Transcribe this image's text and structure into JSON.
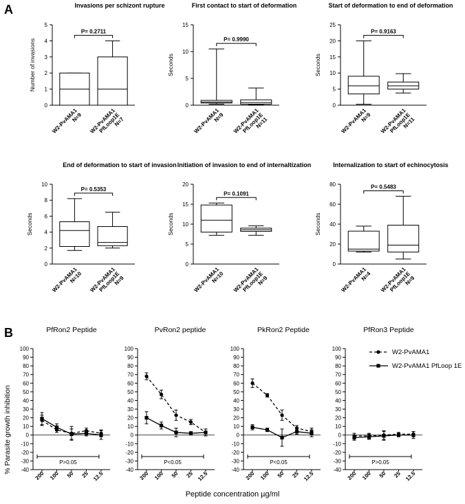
{
  "figure": {
    "panel_a_label": "A",
    "panel_b_label": "B"
  },
  "chart_data": [
    {
      "type": "box",
      "title": "Invasions per schizont rupture",
      "ylabel": "Number of invasions",
      "ylim": [
        0,
        5
      ],
      "yticks": [
        0,
        1,
        2,
        3,
        4,
        5
      ],
      "pvalue": "P= 0.2711",
      "groups": [
        {
          "label": [
            "W2-PvAMA1",
            "N=9"
          ],
          "min": 0,
          "q1": 0,
          "median": 1,
          "q3": 2,
          "max": 2
        },
        {
          "label": [
            "W2-PvAMA1",
            "PfLoop1E",
            "N=7"
          ],
          "min": 0,
          "q1": 0,
          "median": 1,
          "q3": 3,
          "max": 4
        }
      ]
    },
    {
      "type": "box",
      "title": "First contact to start of deformation",
      "ylabel": "Seconds",
      "ylim": [
        0,
        15
      ],
      "yticks": [
        0,
        5,
        10,
        15
      ],
      "pvalue": "P= 0.9990",
      "groups": [
        {
          "label": [
            "W2-PvAMA1",
            "N=9"
          ],
          "min": 0.2,
          "q1": 0.4,
          "median": 0.6,
          "q3": 0.9,
          "max": 10.5
        },
        {
          "label": [
            "W2-PvAMA1",
            "PfLoop1E",
            "N=11"
          ],
          "min": 0.1,
          "q1": 0.2,
          "median": 0.5,
          "q3": 1.0,
          "max": 3.2
        }
      ]
    },
    {
      "type": "box",
      "title": "Start of deformation to end of deformation",
      "ylabel": "Seconds",
      "ylim": [
        0,
        25
      ],
      "yticks": [
        0,
        5,
        10,
        15,
        20,
        25
      ],
      "pvalue": "P= 0.9163",
      "groups": [
        {
          "label": [
            "W2-PvAMA1",
            "N=9"
          ],
          "min": 0.3,
          "q1": 3.5,
          "median": 6.0,
          "q3": 9.0,
          "max": 20.0
        },
        {
          "label": [
            "W2-PvAMA1",
            "PfLoop1E",
            "N=11"
          ],
          "min": 3.8,
          "q1": 5.0,
          "median": 6.0,
          "q3": 7.2,
          "max": 9.8
        }
      ]
    },
    {
      "type": "box",
      "title": "End of deformation to start of invasion",
      "ylabel": "Seconds",
      "ylim": [
        0,
        10
      ],
      "yticks": [
        0,
        2,
        4,
        6,
        8,
        10
      ],
      "pvalue": "P= 0.5353",
      "groups": [
        {
          "label": [
            "W2-PvAMA1",
            "N=10"
          ],
          "min": 1.7,
          "q1": 2.2,
          "median": 4.2,
          "q3": 5.3,
          "max": 8.2
        },
        {
          "label": [
            "W2-PvAMA1",
            "PfLoop1E",
            "N=9"
          ],
          "min": 2.0,
          "q1": 2.3,
          "median": 2.7,
          "q3": 4.7,
          "max": 6.5
        }
      ]
    },
    {
      "type": "box",
      "title": "Initiation of invasion to end of internaltization",
      "ylabel": "Seconds",
      "ylim": [
        0,
        20
      ],
      "yticks": [
        0,
        5,
        10,
        15,
        20
      ],
      "pvalue": "P= 0.1091",
      "groups": [
        {
          "label": [
            "W2-PvAMA1",
            "N=10"
          ],
          "min": 7.2,
          "q1": 8.0,
          "median": 11.0,
          "q3": 14.8,
          "max": 15.3
        },
        {
          "label": [
            "W2-PvAMA1",
            "PfLoop1E",
            "N=9"
          ],
          "min": 7.2,
          "q1": 8.2,
          "median": 8.6,
          "q3": 9.0,
          "max": 9.6
        }
      ]
    },
    {
      "type": "box",
      "title": "Internalization to start of echinocytosis",
      "ylabel": "Seconds",
      "ylim": [
        0,
        80
      ],
      "yticks": [
        0,
        20,
        40,
        60,
        80
      ],
      "pvalue": "P= 0.5483",
      "groups": [
        {
          "label": [
            "W2-PvAMA1",
            "N=4"
          ],
          "min": 12,
          "q1": 13,
          "median": 15,
          "q3": 33,
          "max": 38
        },
        {
          "label": [
            "W2-PvAMA1",
            "PfLoop1E",
            "N=9"
          ],
          "min": 5,
          "q1": 12,
          "median": 19,
          "q3": 39,
          "max": 68
        }
      ]
    },
    {
      "type": "line",
      "title": "PfRon2 Peptide",
      "x": [
        "200",
        "100",
        "50",
        "25",
        "12.5"
      ],
      "pvalue": "P>0.05",
      "series": [
        {
          "name": "W2-PvAMA1",
          "values": [
            17,
            6,
            2,
            5,
            2
          ],
          "errors": [
            6,
            3,
            8,
            3,
            4
          ]
        },
        {
          "name": "W2-PvAMA1 PfLoop 1E",
          "values": [
            19,
            9,
            1,
            2,
            0
          ],
          "errors": [
            7,
            4,
            6,
            3,
            5
          ]
        }
      ]
    },
    {
      "type": "line",
      "title": "PvRon2 peptide",
      "x": [
        "200",
        "100",
        "50",
        "25",
        "12.5"
      ],
      "pvalue": "P<0.05",
      "series": [
        {
          "name": "W2-PvAMA1",
          "values": [
            68,
            47,
            23,
            15,
            3
          ],
          "errors": [
            4,
            5,
            6,
            3,
            4
          ]
        },
        {
          "name": "W2-PvAMA1 PfLoop 1E",
          "values": [
            20,
            11,
            3,
            2,
            3
          ],
          "errors": [
            7,
            4,
            5,
            2,
            4
          ]
        }
      ]
    },
    {
      "type": "line",
      "title": "PkRon2 Peptide",
      "x": [
        "200",
        "100",
        "50",
        "25",
        "12.5"
      ],
      "pvalue": "P<0.05",
      "series": [
        {
          "name": "W2-PvAMA1",
          "values": [
            60,
            46,
            23,
            8,
            4
          ],
          "errors": [
            5,
            2,
            6,
            3,
            4
          ]
        },
        {
          "name": "W2-PvAMA1 PfLoop 1E",
          "values": [
            9,
            6,
            -3,
            4,
            2
          ],
          "errors": [
            3,
            2,
            10,
            3,
            4
          ]
        }
      ]
    },
    {
      "type": "line",
      "title": "PfRon3 Peptide",
      "x": [
        "200",
        "100",
        "50",
        "25",
        "12.5"
      ],
      "pvalue": "P>0.05",
      "series": [
        {
          "name": "W2-PvAMA1",
          "values": [
            -1,
            -1,
            0,
            1,
            1
          ],
          "errors": [
            3,
            3,
            5,
            2,
            3
          ]
        },
        {
          "name": "W2-PvAMA1 PfLoop 1E",
          "values": [
            -3,
            -2,
            -1,
            0,
            0
          ],
          "errors": [
            3,
            3,
            5,
            2,
            4
          ]
        }
      ]
    }
  ],
  "panel_b": {
    "ylabel": "% Parasite growth inhibition",
    "xlabel": "Peptide concentration µg/ml",
    "ylim": [
      -40,
      100
    ],
    "yticks": [
      -40,
      -30,
      -20,
      -10,
      0,
      10,
      20,
      30,
      40,
      50,
      60,
      70,
      80,
      90,
      100
    ],
    "legend": [
      "W2-PvAMA1",
      "W2-PvAMA1 PfLoop 1E"
    ]
  }
}
